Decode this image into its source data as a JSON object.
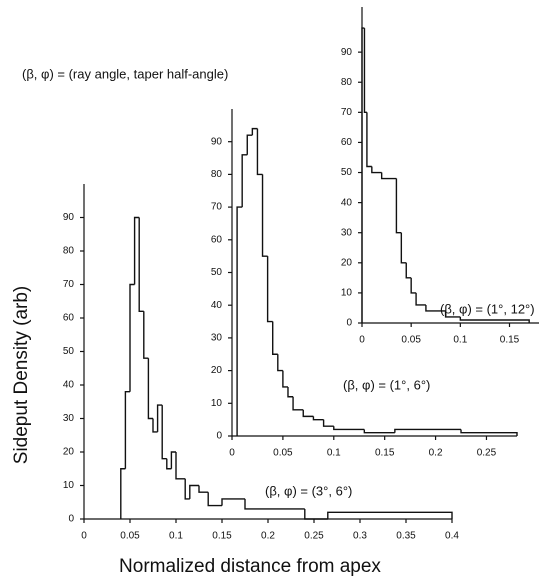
{
  "chart_data": [
    {
      "type": "histogram",
      "annotation": "(β, φ) = (ray angle, taper half-angle)",
      "xlabel": "Normalized distance from apex",
      "ylabel": "Sideput Density (arb)",
      "label": "(β, φ) = (3°, 6°)",
      "color": "#111111",
      "bins": [
        0.04,
        0.045,
        0.05,
        0.055,
        0.06,
        0.065,
        0.07,
        0.075,
        0.08,
        0.085,
        0.09,
        0.095,
        0.1,
        0.11,
        0.115,
        0.125,
        0.135,
        0.15,
        0.175,
        0.24,
        0.265,
        0.4
      ],
      "values": [
        15,
        38,
        70,
        90,
        62,
        48,
        30,
        26,
        34,
        18,
        15,
        20,
        12,
        6,
        10,
        8,
        4,
        6,
        3,
        0,
        2
      ],
      "xlim": [
        0,
        0.4
      ],
      "xticks": [
        0,
        0.05,
        0.1,
        0.15,
        0.2,
        0.25,
        0.3,
        0.35,
        0.4
      ],
      "ylim": [
        0,
        100
      ],
      "yticks": [
        0,
        10,
        20,
        30,
        40,
        50,
        60,
        70,
        80,
        90
      ]
    },
    {
      "type": "histogram",
      "label": "(β, φ) = (1°, 6°)",
      "color": "#111111",
      "bins": [
        0.005,
        0.01,
        0.015,
        0.02,
        0.025,
        0.03,
        0.035,
        0.04,
        0.045,
        0.05,
        0.055,
        0.06,
        0.07,
        0.08,
        0.09,
        0.1,
        0.13,
        0.16,
        0.225,
        0.28
      ],
      "values": [
        70,
        86,
        92,
        94,
        80,
        55,
        35,
        25,
        20,
        15,
        12,
        8,
        6,
        5,
        3,
        2,
        1,
        2,
        1
      ],
      "xlim": [
        0,
        0.28
      ],
      "xticks": [
        0,
        0.05,
        0.1,
        0.15,
        0.2,
        0.25
      ],
      "ylim": [
        0,
        100
      ],
      "yticks": [
        0,
        10,
        20,
        30,
        40,
        50,
        60,
        70,
        80,
        90
      ]
    },
    {
      "type": "histogram",
      "label": "(β, φ) = (1°, 12°)",
      "color": "#111111",
      "bins": [
        0,
        0.0025,
        0.005,
        0.01,
        0.02,
        0.035,
        0.04,
        0.045,
        0.05,
        0.055,
        0.065,
        0.085,
        0.1,
        0.17
      ],
      "values": [
        98,
        70,
        52,
        50,
        48,
        30,
        20,
        15,
        10,
        6,
        4,
        2,
        1
      ],
      "xlim": [
        0,
        0.18
      ],
      "xticks": [
        0,
        0.05,
        0.1,
        0.15
      ],
      "ylim": [
        0,
        105
      ],
      "yticks": [
        0,
        10,
        20,
        30,
        40,
        50,
        60,
        70,
        80,
        90
      ]
    }
  ]
}
